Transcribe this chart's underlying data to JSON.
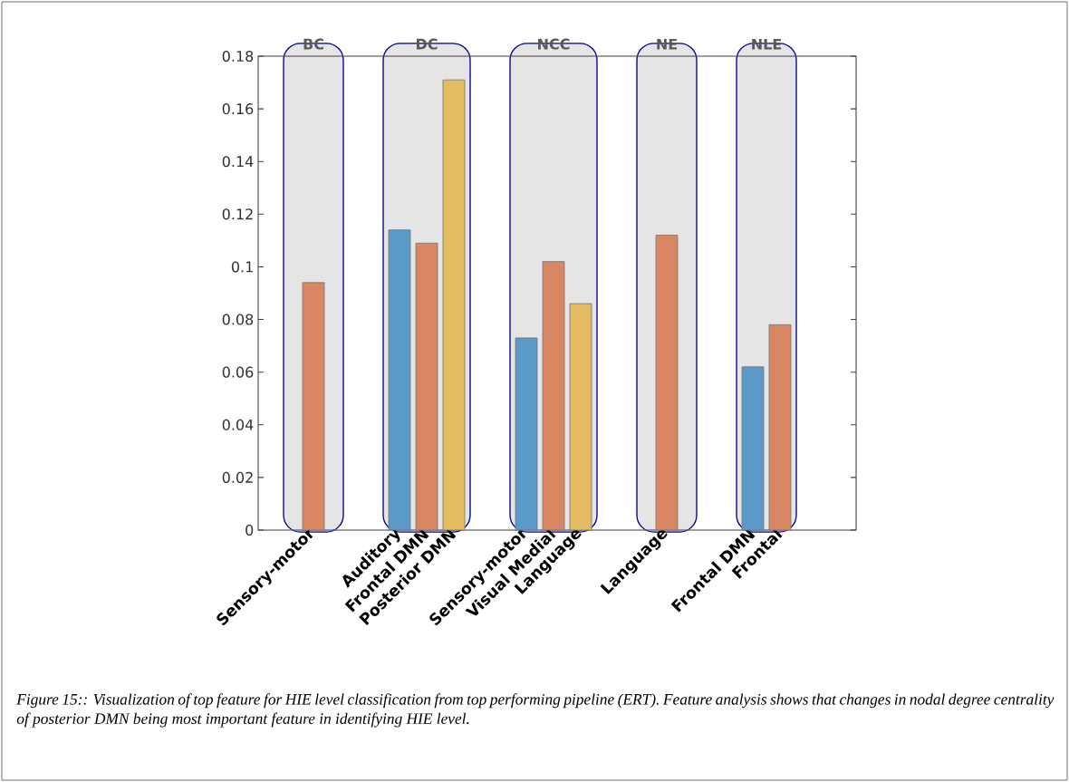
{
  "chart_data": [
    {
      "type": "bar",
      "title": "BC",
      "categories": [
        "Sensory-motor"
      ],
      "values": [
        0.094
      ],
      "colors": [
        "#d88762"
      ],
      "ylim": [
        0,
        0.18
      ],
      "yticks": [
        0,
        0.02,
        0.04,
        0.06,
        0.08,
        0.1,
        0.12,
        0.14,
        0.16,
        0.18
      ],
      "annotations": [
        "Figure 15:: Visualization of top feature for HIE level classification from top performing pipeline (ERT). Feature analysis shows that changes in nodal degree centrality of posterior DMN being most important feature in identifying HIE level."
      ]
    },
    {
      "type": "bar",
      "title": "DC",
      "categories": [
        "Auditory",
        "Frontal DMN",
        "Posterior DMN"
      ],
      "values": [
        0.114,
        0.109,
        0.171
      ],
      "colors": [
        "#5b9ac8",
        "#d88762",
        "#e3bc62"
      ],
      "ylim": [
        0,
        0.18
      ],
      "tick_labels": "x"
    },
    {
      "type": "bar",
      "title": "NCC",
      "categories": [
        "Sensory-motor",
        "Visual Medial",
        "Language"
      ],
      "values": [
        0.073,
        0.102,
        0.086
      ],
      "colors": [
        "#5b9ac8",
        "#d88762",
        "#e3bc62"
      ],
      "ylim": [
        0,
        0.18
      ],
      "tick_labels": "x"
    },
    {
      "type": "bar",
      "title": "NE",
      "categories": [
        "Language"
      ],
      "values": [
        0.112
      ],
      "colors": [
        "#d88762"
      ],
      "ylim": [
        0,
        0.18
      ],
      "tick_labels": "x"
    },
    {
      "type": "bar",
      "title": "NLE",
      "categories": [
        "Frontal DMN",
        "Frontal"
      ],
      "values": [
        0.062,
        0.078
      ],
      "colors": [
        "#5b9ac8",
        "#d88762"
      ],
      "ylim": [
        0,
        0.18
      ],
      "tick_labels": "x"
    }
  ]
}
